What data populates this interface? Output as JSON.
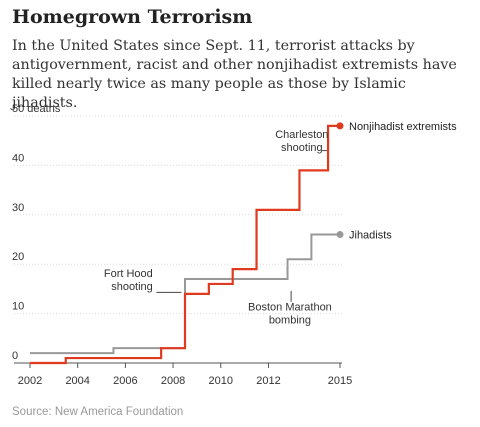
{
  "header": {
    "title": "Homegrown Terrorism",
    "subtitle": "In the United States since Sept. 11, terrorist attacks by antigovernment, racist and other nonjihadist extremists have killed nearly twice as many people as those by Islamic jihadists."
  },
  "footer": {
    "source": "Source: New America Foundation"
  },
  "chart_data": {
    "type": "line",
    "step": "after",
    "title": "Homegrown Terrorism",
    "xlabel": "",
    "ylabel": "",
    "xlim": [
      2002,
      2015
    ],
    "ylim": [
      0,
      50
    ],
    "x_ticks": [
      {
        "value": 2002,
        "label": "2002"
      },
      {
        "value": 2004,
        "label": "2004"
      },
      {
        "value": 2006,
        "label": "2006"
      },
      {
        "value": 2008,
        "label": "2008"
      },
      {
        "value": 2010,
        "label": "2010"
      },
      {
        "value": 2012,
        "label": "2012"
      },
      {
        "value": 2015,
        "label": "2015"
      }
    ],
    "y_ticks": [
      {
        "value": 0,
        "label": "0"
      },
      {
        "value": 10,
        "label": "10"
      },
      {
        "value": 20,
        "label": "20"
      },
      {
        "value": 30,
        "label": "30"
      },
      {
        "value": 40,
        "label": "40"
      },
      {
        "value": 50,
        "label": "50 deaths"
      }
    ],
    "grid": true,
    "series": [
      {
        "name": "Nonjihadist extremists",
        "color": "#e03a1e",
        "points": [
          [
            2002,
            0
          ],
          [
            2003.5,
            1
          ],
          [
            2007.5,
            3
          ],
          [
            2008.5,
            14
          ],
          [
            2009.5,
            16
          ],
          [
            2010.5,
            19
          ],
          [
            2011.5,
            31
          ],
          [
            2013.3,
            39
          ],
          [
            2014.5,
            48
          ],
          [
            2015,
            48
          ]
        ]
      },
      {
        "name": "Jihadists",
        "color": "#999999",
        "points": [
          [
            2002,
            2
          ],
          [
            2005.5,
            3
          ],
          [
            2008.5,
            17
          ],
          [
            2012.8,
            21
          ],
          [
            2013.8,
            26
          ],
          [
            2015,
            26
          ]
        ]
      }
    ],
    "annotations": [
      {
        "id": "charleston",
        "lines": [
          "Charleston",
          "shooting"
        ],
        "x": 2015,
        "y": 44
      },
      {
        "id": "fort-hood",
        "lines": [
          "Fort Hood",
          "shooting"
        ],
        "x": 2009,
        "y": 14
      },
      {
        "id": "boston",
        "lines": [
          "Boston Marathon",
          "bombing"
        ],
        "x": 2013,
        "y": 21
      }
    ]
  }
}
